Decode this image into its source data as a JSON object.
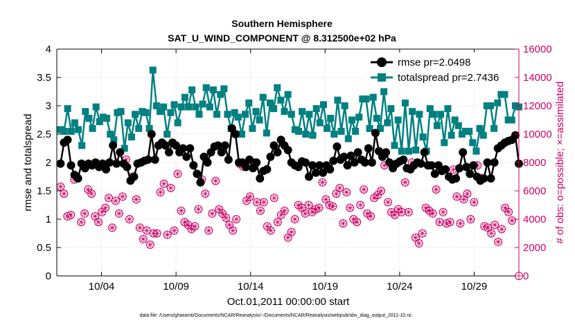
{
  "chart_data": {
    "type": "line",
    "title": "Southern Hemisphere",
    "subtitle": "SAT_U_WIND_COMPONENT @ 8.312500e+02 hPa",
    "xlabel": "Oct.01,2011 00:00:00 start",
    "ylabel_left": "rmse and totalspread",
    "ylabel_right": "# of obs: o=possible; ×=assimilated",
    "footnote": "data file: /Users/gharamti/Documents/NCAR/Reanalysis/~/Documents/NCAR/Reanalysis/webpub/obs_diag_output_2011-10.nc",
    "xlim": [
      0,
      31
    ],
    "ylim_left": [
      0,
      4
    ],
    "ylim_right": [
      0,
      16000
    ],
    "xticks": [
      {
        "value": 3,
        "label": "10/04"
      },
      {
        "value": 8,
        "label": "10/09"
      },
      {
        "value": 13,
        "label": "10/14"
      },
      {
        "value": 18,
        "label": "10/19"
      },
      {
        "value": 23,
        "label": "10/24"
      },
      {
        "value": 28,
        "label": "10/29"
      }
    ],
    "yticks_left": [
      "0",
      "0.5",
      "1",
      "1.5",
      "2",
      "2.5",
      "3",
      "3.5",
      "4"
    ],
    "yticks_right": [
      "0",
      "2000",
      "4000",
      "6000",
      "8000",
      "10000",
      "12000",
      "14000",
      "16000"
    ],
    "series": [
      {
        "name": "rmse",
        "legend": "rmse pr=2.0498",
        "color": "#000000",
        "values": [
          1.98,
          2.35,
          2.4,
          1.95,
          1.78,
          1.72,
          1.98,
          1.9,
          1.98,
          1.95,
          2.0,
          1.92,
          1.98,
          1.88,
          2.0,
          2.3,
          1.98,
          2.18,
          1.98,
          1.92,
          1.68,
          1.75,
          1.98,
          2.0,
          2.03,
          2.05,
          2.5,
          2.05,
          2.3,
          2.35,
          2.3,
          2.18,
          2.35,
          2.3,
          2.18,
          2.25,
          2.1,
          2.25,
          1.95,
          1.8,
          1.65,
          2.1,
          2.0,
          2.18,
          2.28,
          2.3,
          2.18,
          2.3,
          2.05,
          2.6,
          2.5,
          2.0,
          2.0,
          1.92,
          2.05,
          1.9,
          2.0,
          1.72,
          1.85,
          1.88,
          2.1,
          2.3,
          2.18,
          2.4,
          2.3,
          2.22,
          2.0,
          1.95,
          1.92,
          2.02,
          2.0,
          1.75,
          1.95,
          1.82,
          1.95,
          1.82,
          1.95,
          1.88,
          2.03,
          2.28,
          2.05,
          2.1,
          1.95,
          2.12,
          2.0,
          2.18,
          2.05,
          2.0,
          2.25,
          2.0,
          2.52,
          2.2,
          2.1,
          2.18,
          2.0,
          1.9,
          1.98,
          2.02,
          2.05,
          1.9,
          1.88,
          1.95,
          2.0,
          1.98,
          2.18,
          1.95,
          1.95,
          1.8,
          1.95,
          1.85,
          1.88,
          1.75,
          1.7,
          1.72,
          1.9,
          2.18,
          1.92,
          1.8,
          1.95,
          1.75,
          1.68,
          1.72,
          2.0,
          1.72,
          2.0,
          2.25,
          2.3,
          2.35,
          2.38,
          2.4,
          2.48,
          1.98
        ],
        "pr": "2.0498"
      },
      {
        "name": "totalspread",
        "legend": "totalspread pr=2.7436",
        "color": "#008080",
        "values": [
          2.58,
          2.55,
          2.95,
          2.55,
          2.7,
          2.58,
          2.3,
          2.9,
          2.78,
          2.6,
          2.98,
          2.72,
          2.8,
          2.78,
          2.5,
          2.4,
          2.88,
          2.9,
          2.25,
          2.7,
          2.45,
          2.85,
          2.6,
          2.9,
          2.88,
          2.6,
          3.63,
          3.0,
          2.9,
          2.98,
          2.5,
          2.88,
          3.02,
          2.7,
          2.98,
          3.15,
          2.98,
          3.28,
          2.98,
          2.85,
          3.03,
          3.32,
          2.98,
          3.28,
          2.85,
          3.2,
          3.3,
          2.85,
          2.6,
          2.88,
          2.8,
          2.5,
          2.85,
          3.05,
          2.6,
          2.9,
          2.75,
          3.15,
          2.52,
          3.05,
          2.95,
          3.32,
          3.1,
          2.9,
          3.2,
          2.85,
          2.58,
          2.55,
          2.9,
          2.5,
          2.85,
          2.48,
          2.95,
          2.7,
          3.02,
          2.6,
          2.78,
          2.5,
          3.1,
          2.55,
          3.0,
          2.42,
          2.75,
          2.55,
          2.8,
          3.12,
          3.12,
          2.6,
          3.15,
          2.78,
          2.6,
          3.25,
          2.7,
          2.95,
          2.3,
          2.75,
          2.2,
          3.05,
          2.2,
          2.9,
          2.22,
          2.85,
          2.45,
          2.2,
          2.95,
          2.85,
          2.65,
          2.85,
          2.35,
          2.95,
          2.48,
          2.75,
          2.65,
          2.5,
          2.55,
          2.55,
          2.35,
          2.2,
          2.6,
          2.48,
          3.0,
          3.0,
          2.6,
          3.05,
          3.2,
          3.2,
          2.75,
          2.75,
          3.0,
          2.98
        ],
        "pr": "2.7436"
      },
      {
        "name": "obs_possible",
        "legend": "",
        "color": "#cc0066",
        "axis": "right",
        "values": [
          6300,
          5800,
          4200,
          4300,
          6800,
          6900,
          3800,
          4400,
          6100,
          5800,
          4200,
          3800,
          4500,
          4800,
          5500,
          3400,
          5300,
          4400,
          5600,
          8200,
          4000,
          7000,
          5400,
          3400,
          2600,
          3200,
          2200,
          3000,
          3000,
          5900,
          6500,
          2900,
          6200,
          3200,
          7200,
          4600,
          3800,
          3600,
          3300,
          3500,
          4700,
          6800,
          5800,
          3200,
          4400,
          6700,
          4700,
          4400,
          4100,
          3600,
          3200,
          4000,
          7900,
          7700,
          5300,
          5600,
          8000,
          5200,
          4600,
          5200,
          3500,
          3200,
          5500,
          3800,
          4300,
          4600,
          2700,
          3100,
          4000,
          5000,
          4800,
          4400,
          5000,
          4500,
          4700,
          4800,
          6600,
          5400,
          5000,
          4900,
          5800,
          6200,
          3700,
          5900,
          4800,
          4000,
          3800,
          5000,
          6100,
          4400,
          4200,
          5500,
          5700,
          6000,
          7800,
          5200,
          4500,
          4300,
          4700,
          4500,
          6600,
          4500,
          8000,
          2700,
          2300,
          3000,
          4800,
          4600,
          4400,
          6100,
          3800,
          4500,
          3700,
          3800,
          7500,
          5600,
          3700,
          5400,
          5800,
          4000,
          5200,
          7800,
          6900,
          3500,
          3400,
          3000,
          3600,
          2400,
          3300,
          4800,
          4500,
          3900
        ],
        "marker": "circle-plus"
      }
    ],
    "last_obs_x": 31,
    "last_obs_value": 0
  }
}
